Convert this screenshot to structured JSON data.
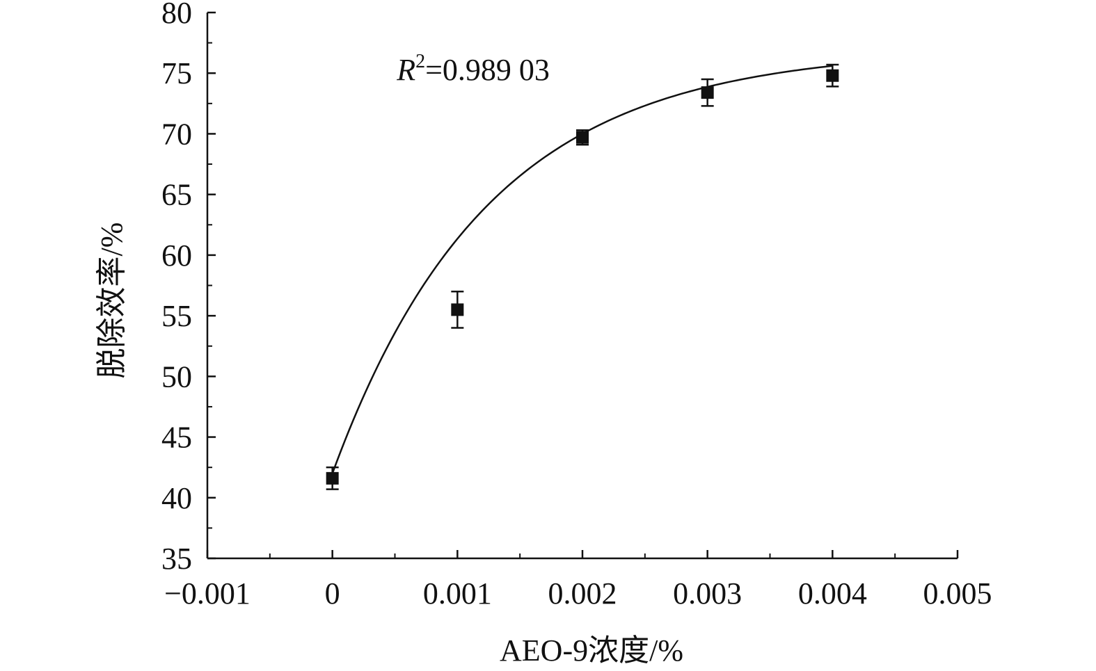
{
  "chart_data": {
    "type": "scatter",
    "title": "",
    "xlabel": "AEO-9浓度/%",
    "ylabel": "脱除效率/%",
    "xlim": [
      -0.001,
      0.005
    ],
    "ylim": [
      35,
      80
    ],
    "x_ticks": [
      -0.001,
      0,
      0.001,
      0.002,
      0.003,
      0.004,
      0.005
    ],
    "x_tick_labels": [
      "−0.001",
      "0",
      "0.001",
      "0.002",
      "0.003",
      "0.004",
      "0.005"
    ],
    "y_ticks": [
      35,
      40,
      45,
      50,
      55,
      60,
      65,
      70,
      75,
      80
    ],
    "y_tick_labels": [
      "35",
      "40",
      "45",
      "50",
      "55",
      "60",
      "65",
      "70",
      "75",
      "80"
    ],
    "grid": false,
    "legend": false,
    "series": [
      {
        "type": "scatter",
        "marker": "square",
        "color": "#111111",
        "x": [
          0,
          0.001,
          0.002,
          0.003,
          0.004
        ],
        "y": [
          41.6,
          55.5,
          69.7,
          73.4,
          74.8
        ],
        "error": [
          0.9,
          1.5,
          0.6,
          1.1,
          0.9
        ]
      },
      {
        "type": "line",
        "fit": "exponential",
        "color": "#111111",
        "x_range": [
          0,
          0.004
        ],
        "fit_points": [
          [
            0,
            42.0
          ],
          [
            0.001,
            59.8
          ],
          [
            0.002,
            68.9
          ],
          [
            0.003,
            73.3
          ],
          [
            0.004,
            75.6
          ]
        ]
      }
    ],
    "annotation": {
      "prefix": "R",
      "superscript": "2",
      "value": "=0.989 03",
      "x": 0.00135,
      "y": 75
    }
  }
}
